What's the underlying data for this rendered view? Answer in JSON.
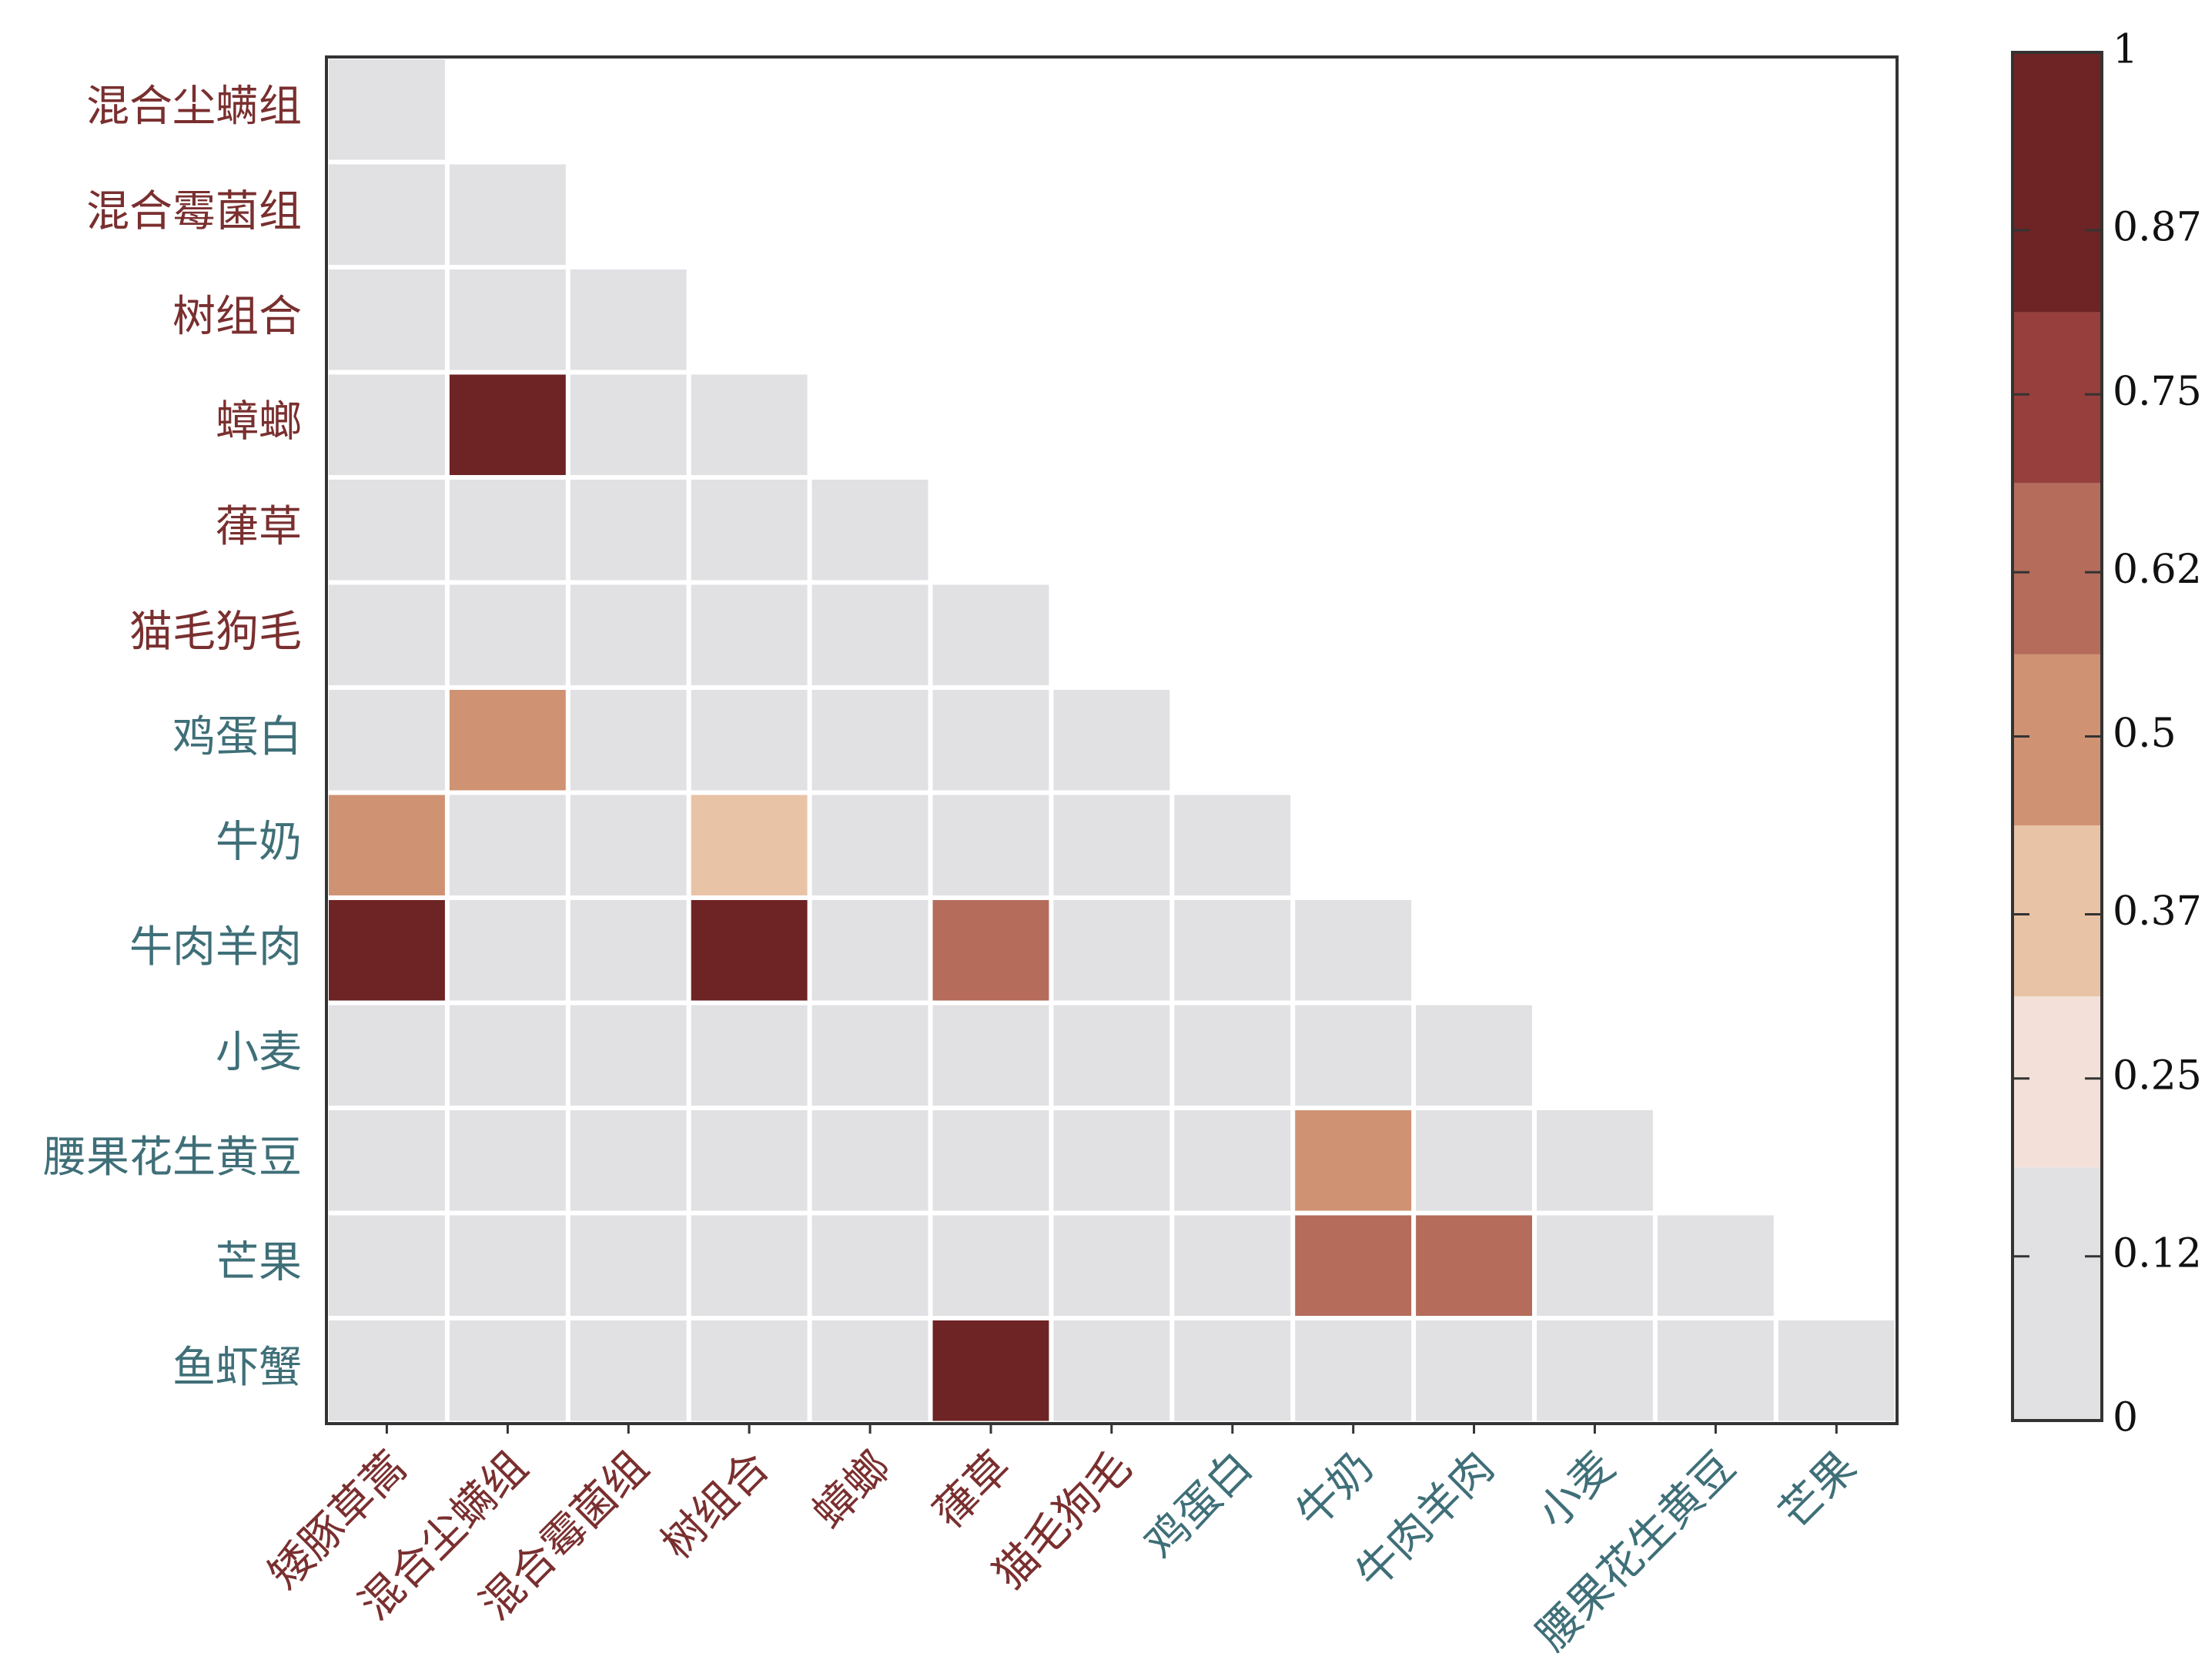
{
  "chart_data": {
    "type": "heatmap",
    "layout": "lower-triangle",
    "title": "",
    "xlabel": "",
    "ylabel": "",
    "row_labels": [
      "混合尘螨组",
      "混合霉菌组",
      "树组合",
      "蟑螂",
      "葎草",
      "猫毛狗毛",
      "鸡蛋白",
      "牛奶",
      "牛肉羊肉",
      "小麦",
      "腰果花生黄豆",
      "芒果",
      "鱼虾蟹"
    ],
    "col_labels": [
      "矮豚草蒿",
      "混合尘螨组",
      "混合霉菌组",
      "树组合",
      "蟑螂",
      "葎草",
      "猫毛狗毛",
      "鸡蛋白",
      "牛奶",
      "牛肉羊肉",
      "小麦",
      "腰果花生黄豆",
      "芒果"
    ],
    "row_label_colors": [
      "#7a2f2f",
      "#7a2f2f",
      "#7a2f2f",
      "#7a2f2f",
      "#7a2f2f",
      "#7a2f2f",
      "#3f6f78",
      "#3f6f78",
      "#3f6f78",
      "#3f6f78",
      "#3f6f78",
      "#3f6f78",
      "#3f6f78"
    ],
    "col_label_colors": [
      "#7a2f2f",
      "#7a2f2f",
      "#7a2f2f",
      "#7a2f2f",
      "#7a2f2f",
      "#7a2f2f",
      "#7a2f2f",
      "#3f6f78",
      "#3f6f78",
      "#3f6f78",
      "#3f6f78",
      "#3f6f78",
      "#3f6f78"
    ],
    "values": [
      [
        0.0
      ],
      [
        0.0,
        0.0
      ],
      [
        0.0,
        0.0,
        0.0
      ],
      [
        0.0,
        1.0,
        0.0,
        0.0
      ],
      [
        0.0,
        0.0,
        0.0,
        0.0,
        0.0
      ],
      [
        0.0,
        0.0,
        0.0,
        0.0,
        0.0,
        0.0
      ],
      [
        0.0,
        0.5,
        0.0,
        0.0,
        0.0,
        0.0,
        0.0
      ],
      [
        0.5,
        0.0,
        0.0,
        0.37,
        0.0,
        0.12,
        0.0,
        0.0
      ],
      [
        0.87,
        0.0,
        0.0,
        1.0,
        0.0,
        0.62,
        0.0,
        0.0,
        0.0
      ],
      [
        0.0,
        0.0,
        0.0,
        0.0,
        0.0,
        0.0,
        0.0,
        0.0,
        0.0,
        0.0
      ],
      [
        0.0,
        0.0,
        0.0,
        0.0,
        0.0,
        0.0,
        0.0,
        0.0,
        0.5,
        0.12,
        0.0
      ],
      [
        0.0,
        0.0,
        0.0,
        0.0,
        0.0,
        0.0,
        0.12,
        0.0,
        0.62,
        0.62,
        0.0,
        0.0
      ],
      [
        0.12,
        0.0,
        0.0,
        0.12,
        0.0,
        0.87,
        0.0,
        0.0,
        0.0,
        0.0,
        0.0,
        0.0,
        0.0
      ]
    ],
    "colorbar": {
      "min": 0,
      "max": 1,
      "tick_values": [
        0,
        0.12,
        0.25,
        0.37,
        0.5,
        0.62,
        0.75,
        0.87,
        1
      ],
      "tick_labels": [
        "0",
        "0.12",
        "0.25",
        "0.37",
        "0.5",
        "0.62",
        "0.75",
        "0.87",
        "1"
      ],
      "bands": [
        "#e1e1e4",
        "#f3e1d9",
        "#e9c3a6",
        "#cf9373",
        "#b56c5b",
        "#963f3d",
        "#6e2424"
      ]
    },
    "grid": false,
    "legend": "right"
  }
}
